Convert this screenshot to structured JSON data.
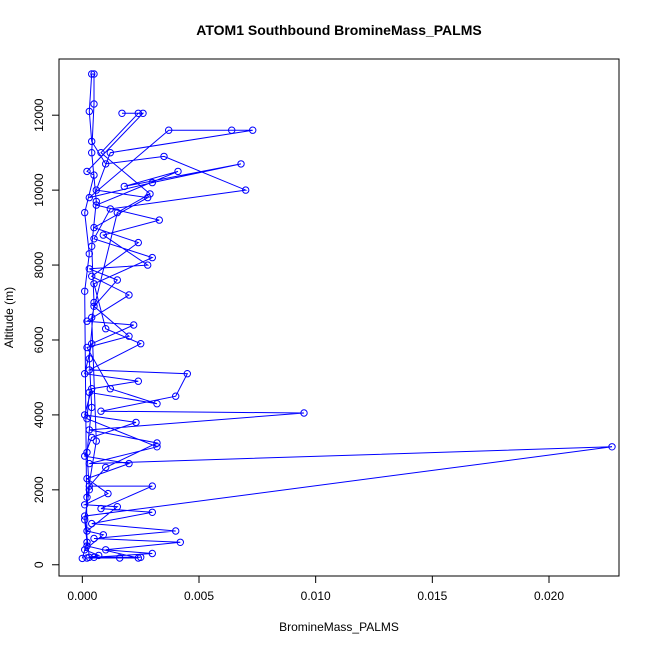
{
  "chart_data": {
    "type": "line",
    "title": "ATOM1 Southbound BromineMass_PALMS",
    "xlabel": "BromineMass_PALMS",
    "ylabel": "Altitude (m)",
    "xlim": [
      -0.001,
      0.023
    ],
    "ylim": [
      -300,
      13500
    ],
    "xticks": [
      0.0,
      0.005,
      0.01,
      0.015,
      0.02
    ],
    "xtick_labels": [
      "0.000",
      "0.005",
      "0.010",
      "0.015",
      "0.020"
    ],
    "yticks": [
      0,
      2000,
      4000,
      6000,
      8000,
      10000,
      12000
    ],
    "ytick_labels": [
      "0",
      "2000",
      "4000",
      "6000",
      "8000",
      "10000",
      "12000"
    ],
    "grid": false,
    "series": [
      {
        "color": "#0000ff",
        "marker": "open-circle",
        "points": [
          [
            0.0,
            170
          ],
          [
            0.0002,
            600
          ],
          [
            0.0001,
            1200
          ],
          [
            0.0003,
            2000
          ],
          [
            0.0002,
            3000
          ],
          [
            0.0004,
            4200
          ],
          [
            0.0003,
            5500
          ],
          [
            0.0005,
            7000
          ],
          [
            0.0004,
            8500
          ],
          [
            0.0006,
            9700
          ],
          [
            0.0004,
            11000
          ],
          [
            0.0005,
            12300
          ],
          [
            0.0005,
            13100
          ],
          [
            0.0004,
            13100
          ],
          [
            0.0003,
            12100
          ],
          [
            0.0004,
            11300
          ],
          [
            0.001,
            10700
          ],
          [
            0.0035,
            10900
          ],
          [
            0.007,
            10000
          ],
          [
            0.0012,
            9500
          ],
          [
            0.0005,
            8700
          ],
          [
            0.003,
            8200
          ],
          [
            0.0005,
            7500
          ],
          [
            0.001,
            6300
          ],
          [
            0.0025,
            5900
          ],
          [
            0.0003,
            5200
          ],
          [
            0.0045,
            5100
          ],
          [
            0.004,
            4500
          ],
          [
            0.0008,
            4100
          ],
          [
            0.0095,
            4050
          ],
          [
            0.0003,
            3600
          ],
          [
            0.0032,
            3250
          ],
          [
            0.001,
            2600
          ],
          [
            0.0003,
            2100
          ],
          [
            0.003,
            2100
          ],
          [
            0.0008,
            1500
          ],
          [
            0.003,
            1400
          ],
          [
            0.0004,
            1100
          ],
          [
            0.004,
            900
          ],
          [
            0.0005,
            700
          ],
          [
            0.0042,
            600
          ],
          [
            0.001,
            400
          ],
          [
            0.003,
            300
          ],
          [
            0.0005,
            200
          ],
          [
            0.0016,
            180
          ],
          [
            0.0025,
            200
          ],
          [
            0.0003,
            200
          ],
          [
            0.0001,
            1300
          ],
          [
            0.0227,
            3150
          ],
          [
            0.0003,
            2700
          ],
          [
            0.0032,
            3150
          ],
          [
            0.0002,
            3900
          ],
          [
            0.0003,
            4600
          ],
          [
            0.0032,
            4300
          ],
          [
            0.0012,
            4700
          ],
          [
            0.0002,
            5800
          ],
          [
            0.002,
            6100
          ],
          [
            0.0005,
            6900
          ],
          [
            0.0015,
            7600
          ],
          [
            0.0003,
            7900
          ],
          [
            0.0028,
            8000
          ],
          [
            0.0009,
            8800
          ],
          [
            0.0033,
            9200
          ],
          [
            0.0006,
            9600
          ],
          [
            0.0041,
            10500
          ],
          [
            0.0018,
            10100
          ],
          [
            0.0068,
            10700
          ],
          [
            0.003,
            10200
          ],
          [
            0.0003,
            9800
          ],
          [
            0.0037,
            11600
          ],
          [
            0.0064,
            11600
          ],
          [
            0.0073,
            11600
          ],
          [
            0.0012,
            11000
          ],
          [
            0.0006,
            10000
          ],
          [
            0.0028,
            9800
          ],
          [
            0.0005,
            9000
          ],
          [
            0.0024,
            8600
          ],
          [
            0.0004,
            7700
          ],
          [
            0.002,
            7200
          ],
          [
            0.0002,
            6500
          ],
          [
            0.0022,
            6400
          ],
          [
            0.0004,
            5900
          ],
          [
            0.0001,
            5100
          ],
          [
            0.0024,
            4900
          ],
          [
            0.0004,
            4700
          ],
          [
            0.0001,
            4000
          ],
          [
            0.0023,
            3800
          ],
          [
            0.0004,
            3400
          ],
          [
            0.0001,
            2900
          ],
          [
            0.002,
            2700
          ],
          [
            0.0002,
            2300
          ],
          [
            0.0011,
            1900
          ],
          [
            0.0001,
            1600
          ],
          [
            0.0015,
            1550
          ],
          [
            0.0002,
            900
          ],
          [
            0.0009,
            800
          ],
          [
            0.0001,
            400
          ],
          [
            0.0007,
            250
          ],
          [
            0.0002,
            180
          ],
          [
            0.0024,
            180
          ],
          [
            0.0002,
            500
          ],
          [
            0.0001,
            7300
          ],
          [
            0.0003,
            8300
          ],
          [
            0.0001,
            9400
          ],
          [
            0.0005,
            10400
          ],
          [
            0.0002,
            10500
          ],
          [
            0.0026,
            12050
          ],
          [
            0.0017,
            12050
          ],
          [
            0.0024,
            12050
          ],
          [
            0.0008,
            11000
          ],
          [
            0.0029,
            9900
          ],
          [
            0.0015,
            9400
          ],
          [
            0.0004,
            6600
          ],
          [
            0.0006,
            3300
          ],
          [
            0.0002,
            1800
          ]
        ]
      }
    ]
  }
}
